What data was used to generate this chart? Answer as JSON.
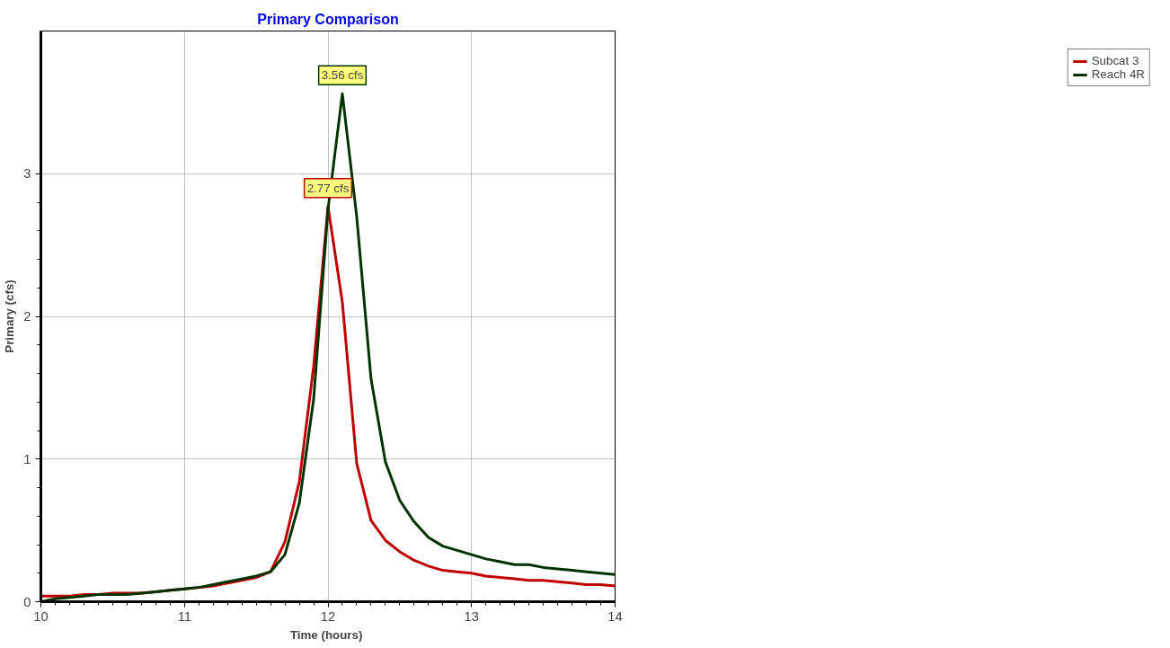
{
  "chart_data": {
    "type": "line",
    "title": "Primary Comparison",
    "xlabel": "Time  (hours)",
    "ylabel": "Primary (cfs)",
    "x": [
      10.0,
      10.1,
      10.2,
      10.3,
      10.4,
      10.5,
      10.6,
      10.7,
      10.8,
      10.9,
      11.0,
      11.1,
      11.2,
      11.3,
      11.4,
      11.5,
      11.6,
      11.7,
      11.8,
      11.9,
      12.0,
      12.1,
      12.2,
      12.3,
      12.4,
      12.5,
      12.6,
      12.7,
      12.8,
      12.9,
      13.0,
      13.1,
      13.2,
      13.3,
      13.4,
      13.5,
      13.6,
      13.7,
      13.8,
      13.9,
      14.0
    ],
    "series": [
      {
        "name": "Subcat 3",
        "color": "#c00000",
        "values": [
          0.04,
          0.04,
          0.04,
          0.05,
          0.05,
          0.06,
          0.06,
          0.06,
          0.07,
          0.08,
          0.09,
          0.1,
          0.11,
          0.13,
          0.15,
          0.17,
          0.21,
          0.42,
          0.84,
          1.65,
          2.77,
          2.1,
          0.97,
          0.57,
          0.43,
          0.35,
          0.29,
          0.25,
          0.22,
          0.21,
          0.2,
          0.18,
          0.17,
          0.16,
          0.15,
          0.15,
          0.14,
          0.13,
          0.12,
          0.12,
          0.11
        ]
      },
      {
        "name": "Reach 4R",
        "color": "#003300",
        "values": [
          0.0,
          0.02,
          0.03,
          0.04,
          0.05,
          0.05,
          0.05,
          0.06,
          0.07,
          0.08,
          0.09,
          0.1,
          0.12,
          0.14,
          0.16,
          0.18,
          0.21,
          0.33,
          0.69,
          1.42,
          2.75,
          3.56,
          2.7,
          1.56,
          0.98,
          0.71,
          0.56,
          0.45,
          0.39,
          0.36,
          0.33,
          0.3,
          0.28,
          0.26,
          0.26,
          0.24,
          0.23,
          0.22,
          0.21,
          0.2,
          0.19
        ]
      }
    ],
    "annotations": [
      {
        "text": "3.56 cfs",
        "x": 12.1,
        "y": 3.56
      },
      {
        "text": "2.77 cfs",
        "x": 12.0,
        "y": 2.77
      }
    ],
    "xlim": [
      10,
      14
    ],
    "ylim": [
      0,
      4
    ],
    "xticks": [
      10,
      11,
      12,
      13,
      14
    ],
    "yticks": [
      0,
      1,
      2,
      3
    ],
    "grid": true,
    "legend": "top right",
    "line_style": "solid",
    "marker": "none"
  }
}
